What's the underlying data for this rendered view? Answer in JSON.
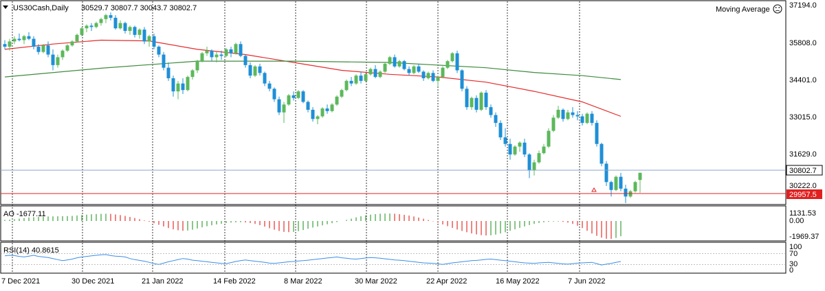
{
  "header": {
    "symbol": ".US30Cash,Daily",
    "ohlc": "30529.7 30807.7 30043.7 30802.7",
    "indicator_title": "Moving Average",
    "indicator_icon": "smiley-icon"
  },
  "colors": {
    "bull": "#5cb85c",
    "bear": "#1e8fd6",
    "ma_fast": "#e52b2b",
    "ma_slow": "#3d8a3d",
    "ao_up": "#3aa03a",
    "ao_down": "#e0332b",
    "rsi": "#3a8ee6",
    "grid": "#000000",
    "current_line": "#8aa6c8",
    "alert_line": "#e02020"
  },
  "price_axis": {
    "labels": [
      "37194.0",
      "35808.0",
      "34401.0",
      "33015.0",
      "31629.0",
      "30222.0"
    ],
    "current_price": "30802.7",
    "alert_price": "29957.5"
  },
  "date_axis": {
    "labels": [
      "7 Dec 2021",
      "30 Dec 2021",
      "21 Jan 2022",
      "14 Feb 2022",
      "8 Mar 2022",
      "30 Mar 2022",
      "22 Apr 2022",
      "16 May 2022",
      "7 Jun 2022"
    ]
  },
  "ao_panel": {
    "label": "AO -1677.11",
    "labels": [
      "1131.53",
      "0.00",
      "-1969.37"
    ]
  },
  "rsi_panel": {
    "label": "RSI(14) 40.8615",
    "labels": [
      "100",
      "70",
      "30",
      "0"
    ]
  },
  "chart_data": {
    "type": "candlestick",
    "title": ".US30Cash,Daily",
    "ylim": [
      29600,
      37500
    ],
    "series": [
      {
        "name": "candles",
        "values": [
          [
            35700,
            35850,
            35500,
            35600
          ],
          [
            35600,
            35900,
            35450,
            35800
          ],
          [
            35800,
            36000,
            35700,
            35900
          ],
          [
            35900,
            36100,
            35800,
            35850
          ],
          [
            35850,
            36050,
            35700,
            36000
          ],
          [
            36000,
            36150,
            35850,
            35900
          ],
          [
            35900,
            36000,
            35500,
            35600
          ],
          [
            35600,
            35700,
            35300,
            35400
          ],
          [
            35400,
            35700,
            35350,
            35650
          ],
          [
            35650,
            35800,
            35200,
            35300
          ],
          [
            35300,
            35500,
            34700,
            34900
          ],
          [
            34900,
            35300,
            34800,
            35200
          ],
          [
            35200,
            35500,
            35100,
            35450
          ],
          [
            35450,
            35700,
            35400,
            35650
          ],
          [
            35650,
            35850,
            35600,
            35800
          ],
          [
            35800,
            36100,
            35750,
            36050
          ],
          [
            36050,
            36350,
            36000,
            36300
          ],
          [
            36300,
            36450,
            36150,
            36400
          ],
          [
            36400,
            36500,
            36200,
            36350
          ],
          [
            36350,
            36550,
            36300,
            36500
          ],
          [
            36500,
            36700,
            36400,
            36650
          ],
          [
            36650,
            36850,
            36500,
            36800
          ],
          [
            36800,
            36900,
            36600,
            36700
          ],
          [
            36700,
            36800,
            36250,
            36300
          ],
          [
            36300,
            36600,
            36250,
            36500
          ],
          [
            36500,
            36550,
            36100,
            36200
          ],
          [
            36200,
            36400,
            36050,
            36350
          ],
          [
            36350,
            36400,
            35950,
            36050
          ],
          [
            36050,
            36300,
            35900,
            36250
          ],
          [
            36250,
            36350,
            35700,
            35800
          ],
          [
            35800,
            36050,
            35600,
            36000
          ],
          [
            36000,
            36100,
            35500,
            35600
          ],
          [
            35600,
            35650,
            35200,
            35300
          ],
          [
            35300,
            35400,
            34700,
            34800
          ],
          [
            34800,
            35000,
            34300,
            34400
          ],
          [
            34400,
            34500,
            33700,
            33900
          ],
          [
            33900,
            34300,
            33600,
            34200
          ],
          [
            34200,
            34400,
            33800,
            33950
          ],
          [
            33950,
            34500,
            33900,
            34450
          ],
          [
            34450,
            34750,
            34350,
            34700
          ],
          [
            34700,
            35100,
            34600,
            35050
          ],
          [
            35050,
            35400,
            35000,
            35350
          ],
          [
            35350,
            35600,
            35250,
            35450
          ],
          [
            35450,
            35500,
            35050,
            35200
          ],
          [
            35200,
            35400,
            35000,
            35300
          ],
          [
            35300,
            35450,
            35100,
            35250
          ],
          [
            35250,
            35550,
            35200,
            35500
          ],
          [
            35500,
            35600,
            35200,
            35350
          ],
          [
            35350,
            35750,
            35300,
            35700
          ],
          [
            35700,
            35800,
            35200,
            35250
          ],
          [
            35250,
            35300,
            34800,
            34900
          ],
          [
            34900,
            35000,
            34400,
            34500
          ],
          [
            34500,
            34900,
            34450,
            34850
          ],
          [
            34850,
            34950,
            34500,
            34600
          ],
          [
            34600,
            34650,
            34100,
            34200
          ],
          [
            34200,
            34300,
            33900,
            34000
          ],
          [
            34000,
            34050,
            33500,
            33600
          ],
          [
            33600,
            33700,
            33000,
            33100
          ],
          [
            33100,
            33500,
            32700,
            33400
          ],
          [
            33400,
            33800,
            33350,
            33750
          ],
          [
            33750,
            33900,
            33550,
            33650
          ],
          [
            33650,
            33950,
            33600,
            33900
          ],
          [
            33900,
            33950,
            33450,
            33500
          ],
          [
            33500,
            33550,
            33100,
            33200
          ],
          [
            33200,
            33300,
            32750,
            32850
          ],
          [
            32850,
            33000,
            32650,
            32950
          ],
          [
            32950,
            33300,
            32900,
            33250
          ],
          [
            33250,
            33400,
            33050,
            33150
          ],
          [
            33150,
            33450,
            33100,
            33400
          ],
          [
            33400,
            33750,
            33350,
            33700
          ],
          [
            33700,
            34000,
            33650,
            33950
          ],
          [
            33950,
            34350,
            33900,
            34300
          ],
          [
            34300,
            34450,
            34100,
            34200
          ],
          [
            34200,
            34550,
            34150,
            34500
          ],
          [
            34500,
            34650,
            34200,
            34300
          ],
          [
            34300,
            34600,
            34250,
            34550
          ],
          [
            34550,
            34800,
            34500,
            34750
          ],
          [
            34750,
            34900,
            34400,
            34450
          ],
          [
            34450,
            34700,
            34400,
            34650
          ],
          [
            34650,
            35000,
            34600,
            34950
          ],
          [
            34950,
            35250,
            34900,
            35200
          ],
          [
            35200,
            35300,
            34800,
            34850
          ],
          [
            34850,
            35100,
            34800,
            35050
          ],
          [
            35050,
            35100,
            34700,
            34750
          ],
          [
            34750,
            34850,
            34500,
            34600
          ],
          [
            34600,
            34900,
            34550,
            34850
          ],
          [
            34850,
            34950,
            34600,
            34650
          ],
          [
            34650,
            34700,
            34300,
            34400
          ],
          [
            34400,
            34650,
            34350,
            34600
          ],
          [
            34600,
            34700,
            34250,
            34300
          ],
          [
            34300,
            34500,
            34100,
            34450
          ],
          [
            34450,
            34850,
            34400,
            34800
          ],
          [
            34800,
            35100,
            34750,
            35050
          ],
          [
            35050,
            35400,
            35000,
            35350
          ],
          [
            35350,
            35450,
            34600,
            34700
          ],
          [
            34700,
            34750,
            33900,
            34000
          ],
          [
            34000,
            34100,
            33200,
            33300
          ],
          [
            33300,
            33700,
            33200,
            33650
          ],
          [
            33650,
            33750,
            33100,
            33200
          ],
          [
            33200,
            33900,
            33150,
            33850
          ],
          [
            33850,
            33950,
            33200,
            33300
          ],
          [
            33300,
            33400,
            32900,
            33000
          ],
          [
            33000,
            33100,
            32550,
            32700
          ],
          [
            32700,
            32800,
            32050,
            32150
          ],
          [
            32150,
            32500,
            31800,
            31900
          ],
          [
            31900,
            32100,
            31300,
            31500
          ],
          [
            31500,
            31850,
            31450,
            31800
          ],
          [
            31800,
            32000,
            31600,
            31950
          ],
          [
            31950,
            32100,
            31400,
            31500
          ],
          [
            31500,
            31550,
            30600,
            30900
          ],
          [
            30900,
            31300,
            30700,
            31200
          ],
          [
            31200,
            31650,
            31150,
            31550
          ],
          [
            31550,
            31900,
            31500,
            31800
          ],
          [
            31800,
            32500,
            31750,
            32400
          ],
          [
            32400,
            33000,
            32350,
            32900
          ],
          [
            32900,
            33350,
            32850,
            33200
          ],
          [
            33200,
            33250,
            32750,
            32850
          ],
          [
            32850,
            33200,
            32800,
            33100
          ],
          [
            33100,
            33300,
            32900,
            33000
          ],
          [
            33000,
            33150,
            32800,
            32950
          ],
          [
            32950,
            33050,
            32600,
            32700
          ],
          [
            32700,
            33100,
            32650,
            33050
          ],
          [
            33050,
            33150,
            32600,
            32700
          ],
          [
            32700,
            32800,
            31800,
            31900
          ],
          [
            31900,
            31950,
            31050,
            31150
          ],
          [
            31150,
            31250,
            30300,
            30450
          ],
          [
            30450,
            30500,
            29900,
            30150
          ],
          [
            30150,
            30700,
            30100,
            30650
          ],
          [
            30650,
            30800,
            30100,
            30200
          ],
          [
            30200,
            30350,
            29650,
            29900
          ],
          [
            29900,
            30150,
            29850,
            30100
          ],
          [
            30100,
            30500,
            30050,
            30450
          ],
          [
            30529.7,
            30807.7,
            30043.7,
            30802.7
          ]
        ]
      },
      {
        "name": "MA fast",
        "values": [
          [
            0,
            35500
          ],
          [
            10,
            35700
          ],
          [
            20,
            35850
          ],
          [
            30,
            35820
          ],
          [
            40,
            35500
          ],
          [
            50,
            35300
          ],
          [
            60,
            35000
          ],
          [
            70,
            34700
          ],
          [
            80,
            34550
          ],
          [
            90,
            34450
          ],
          [
            100,
            34250
          ],
          [
            110,
            33900
          ],
          [
            120,
            33500
          ],
          [
            128,
            32950
          ]
        ]
      },
      {
        "name": "MA slow",
        "values": [
          [
            0,
            34450
          ],
          [
            20,
            34780
          ],
          [
            40,
            35050
          ],
          [
            60,
            35050
          ],
          [
            80,
            35000
          ],
          [
            100,
            34800
          ],
          [
            110,
            34620
          ],
          [
            120,
            34500
          ],
          [
            128,
            34350
          ]
        ]
      }
    ],
    "ao": [
      120,
      150,
      200,
      260,
      320,
      380,
      420,
      450,
      480,
      500,
      510,
      520,
      530,
      540,
      560,
      600,
      650,
      700,
      740,
      770,
      790,
      800,
      780,
      720,
      650,
      560,
      450,
      330,
      200,
      60,
      -80,
      -250,
      -420,
      -600,
      -780,
      -920,
      -1020,
      -1080,
      -1050,
      -960,
      -830,
      -700,
      -580,
      -470,
      -380,
      -300,
      -230,
      -180,
      -150,
      -140,
      -160,
      -220,
      -320,
      -460,
      -620,
      -800,
      -960,
      -1100,
      -1200,
      -1230,
      -1200,
      -1120,
      -1000,
      -860,
      -720,
      -600,
      -480,
      -360,
      -240,
      -120,
      0,
      120,
      260,
      400,
      520,
      620,
      700,
      760,
      800,
      820,
      820,
      800,
      750,
      680,
      600,
      500,
      380,
      250,
      110,
      -40,
      -200,
      -380,
      -570,
      -760,
      -940,
      -1100,
      -1240,
      -1370,
      -1480,
      -1560,
      -1600,
      -1580,
      -1500,
      -1380,
      -1240,
      -1080,
      -920,
      -760,
      -600,
      -450,
      -320,
      -220,
      -140,
      -90,
      -60,
      -60,
      -100,
      -180,
      -320,
      -520,
      -780,
      -1080,
      -1380,
      -1640,
      -1840,
      -1960,
      -1969,
      -1870,
      -1677
    ],
    "rsi": [
      62,
      64,
      63,
      60,
      58,
      61,
      64,
      60,
      58,
      56,
      52,
      48,
      44,
      47,
      50,
      55,
      58,
      60,
      62,
      64,
      66,
      67,
      63,
      61,
      60,
      58,
      52,
      48,
      45,
      42,
      38,
      33,
      30,
      35,
      40,
      44,
      48,
      52,
      50,
      46,
      44,
      42,
      40,
      38,
      36,
      34,
      33,
      37,
      41,
      44,
      47,
      44,
      42,
      40,
      38,
      35,
      34,
      36,
      38,
      40,
      41,
      43,
      44,
      46,
      48,
      50,
      52,
      54,
      56,
      58,
      55,
      53,
      51,
      50,
      52,
      54,
      56,
      55,
      53,
      51,
      49,
      47,
      46,
      44,
      42,
      40,
      38,
      36,
      35,
      34,
      32,
      30,
      33,
      36,
      38,
      40,
      42,
      44,
      45,
      47,
      49,
      50,
      48,
      46,
      44,
      42,
      40,
      38,
      36,
      35,
      34,
      36,
      37,
      38,
      36,
      34,
      32,
      31,
      33,
      35,
      36,
      37,
      38,
      33,
      28,
      31,
      34,
      38,
      41
    ]
  }
}
